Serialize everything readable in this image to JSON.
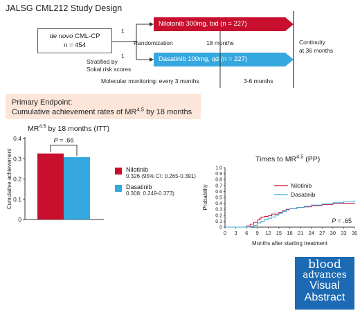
{
  "study_title": "JALSG CML212 Study Design",
  "patients": {
    "line1_italic": "de novo",
    "line1_rest": " CML-CP",
    "line2": "n = 454"
  },
  "ratio_top": "1",
  "ratio_bottom": "1",
  "randomization_label": "Randomization",
  "stratification_line1": "Stratified by",
  "stratification_line2": "Sokal risk scores",
  "arms": [
    {
      "label": "Nilotonib 300mg, bid (n = 227)",
      "color": "#c8102e"
    },
    {
      "label": "Dasatinib 100mg, qd (n = 227)",
      "color": "#35a8df"
    }
  ],
  "timeline": {
    "treatment_duration": "18 months",
    "continuity_line1": "Continuity",
    "continuity_line2": "at 36 months",
    "monitoring_first": "Molecular monitoring:  every 3 months",
    "monitoring_second": "3-6 months"
  },
  "primary_endpoint": {
    "line1": "Primary Endpoint:",
    "line2_prefix": "Cumulative achievement rates of MR",
    "line2_sup": "4.5",
    "line2_suffix": " by 18 months"
  },
  "logo": {
    "line1": "blood",
    "line2": "advances",
    "line3": "Visual",
    "line4": "Abstract"
  },
  "chart_data": [
    {
      "type": "bar",
      "title_prefix": "MR",
      "title_sup": "4.5",
      "title_suffix": " by 18 months (ITT)",
      "ylabel": "Cumulative achievement",
      "ylim": [
        0,
        0.4
      ],
      "yticks": [
        "0",
        "0.1",
        "0.2",
        "0.3",
        "0.4"
      ],
      "categories": [
        "Nilotinib",
        "Dasatinib"
      ],
      "values": [
        0.326,
        0.308
      ],
      "colors": [
        "#c8102e",
        "#35a8df"
      ],
      "p_value_label": "P",
      "p_value_text": " = .66",
      "legend": [
        {
          "name": "Nilotinib",
          "detail": "0.326 (95% CI: 0.265-0.391)",
          "color": "#c8102e"
        },
        {
          "name": "Dasatinib",
          "detail": "0.308: 0.249-0.373)",
          "color": "#35a8df"
        }
      ],
      "legend_position": "right"
    },
    {
      "type": "line",
      "title_prefix": "Times to MR",
      "title_sup": "4.5",
      "title_suffix": " (PP)",
      "xlabel": "Months after starting treatment",
      "ylabel": "Probability",
      "xlim": [
        0,
        36
      ],
      "ylim": [
        0,
        1.0
      ],
      "xticks": [
        "0",
        "3",
        "6",
        "9",
        "12",
        "15",
        "18",
        "21",
        "24",
        "27",
        "30",
        "33",
        "36"
      ],
      "yticks": [
        "0",
        "0.1",
        "0.2",
        "0.3",
        "0.4",
        "0.5",
        "0.6",
        "0.7",
        "0.8",
        "0.9",
        "1.0"
      ],
      "p_value_label": "P",
      "p_value_text": " = .65",
      "legend_position": "top-right",
      "series": [
        {
          "name": "Nilotinib",
          "color": "#c8102e",
          "x": [
            0,
            5.5,
            6,
            7,
            8,
            9,
            9.5,
            10,
            11,
            12,
            13,
            15,
            16,
            17,
            18,
            20,
            22,
            24,
            27,
            30,
            33,
            36
          ],
          "y": [
            0,
            0,
            0.02,
            0.05,
            0.08,
            0.12,
            0.14,
            0.17,
            0.18,
            0.19,
            0.22,
            0.25,
            0.28,
            0.3,
            0.31,
            0.33,
            0.34,
            0.36,
            0.38,
            0.4,
            0.4,
            0.41
          ]
        },
        {
          "name": "Dasatinib",
          "color": "#35a8df",
          "x": [
            0,
            6,
            7,
            8,
            9,
            10,
            11,
            12,
            13,
            14,
            15,
            16,
            17,
            18,
            20,
            22,
            24,
            27,
            30,
            33,
            36
          ],
          "y": [
            0,
            0,
            0.01,
            0.03,
            0.07,
            0.1,
            0.13,
            0.15,
            0.17,
            0.2,
            0.23,
            0.26,
            0.29,
            0.31,
            0.33,
            0.35,
            0.37,
            0.39,
            0.41,
            0.43,
            0.45
          ]
        }
      ]
    }
  ]
}
